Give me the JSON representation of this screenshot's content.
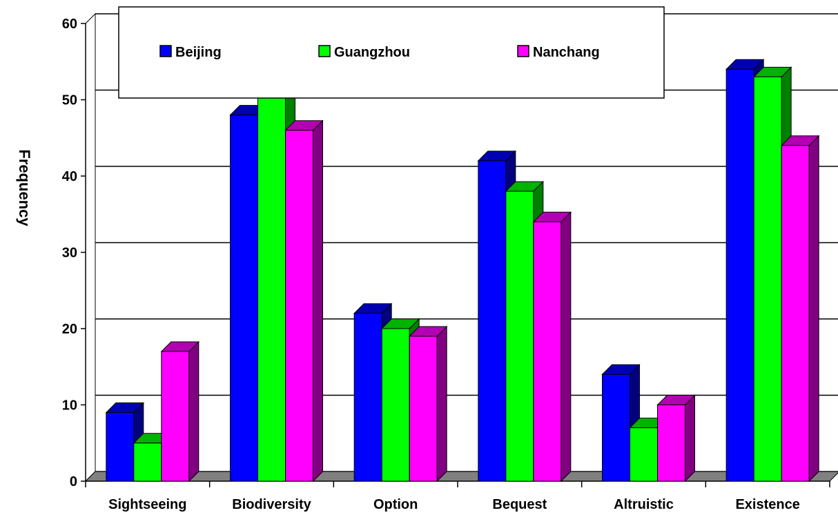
{
  "chart_data": {
    "type": "bar",
    "title": "",
    "xlabel": "",
    "ylabel": "Frequency",
    "ylim": [
      0,
      60
    ],
    "yticks": [
      0,
      10,
      20,
      30,
      40,
      50,
      60
    ],
    "grid": true,
    "legend_position": "top",
    "style": "3d",
    "categories": [
      "Sightseeing",
      "Biodiversity",
      "Option",
      "Bequest",
      "Altruistic",
      "Existence"
    ],
    "series": [
      {
        "name": "Beijing",
        "color": "#0000ff",
        "values": [
          9,
          48,
          22,
          42,
          14,
          54
        ]
      },
      {
        "name": "Guangzhou",
        "color": "#00ff00",
        "values": [
          5,
          51,
          20,
          38,
          7,
          53
        ]
      },
      {
        "name": "Nanchang",
        "color": "#ff00ff",
        "values": [
          17,
          46,
          19,
          34,
          10,
          44
        ]
      }
    ]
  }
}
